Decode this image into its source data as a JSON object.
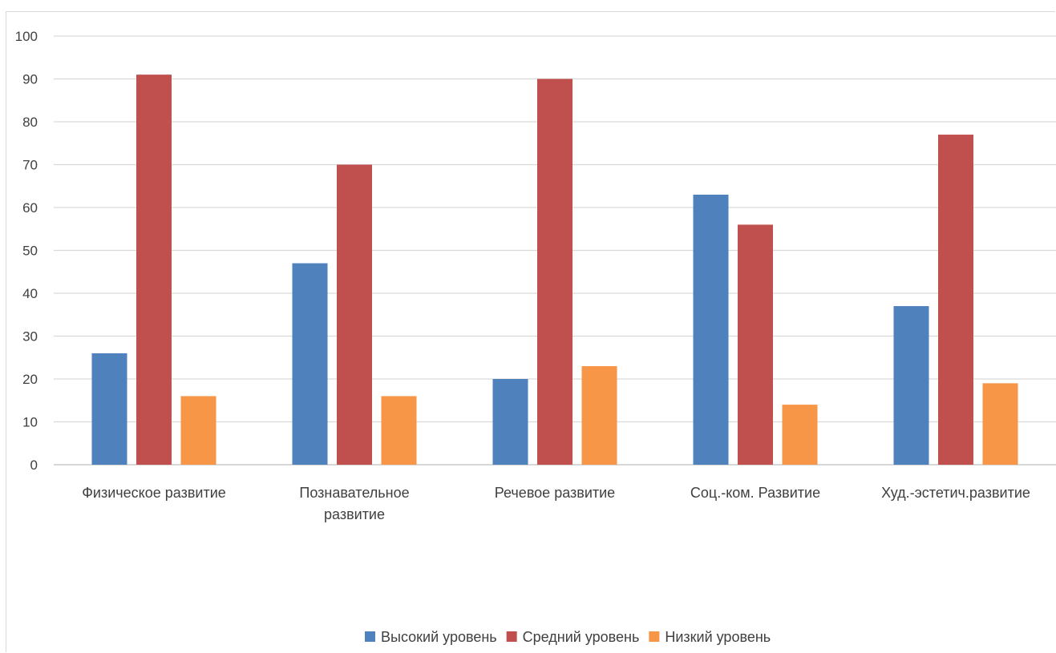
{
  "chart_data": {
    "type": "bar",
    "categories": [
      [
        "Физическое развитие"
      ],
      [
        "Познавательное",
        "развитие"
      ],
      [
        "Речевое развитие"
      ],
      [
        "Соц.-ком. Развитие"
      ],
      [
        "Худ.-эстетич.развитие"
      ]
    ],
    "series": [
      {
        "name": "Высокий уровень",
        "color": "#4f81bd",
        "values": [
          26,
          47,
          20,
          63,
          37
        ]
      },
      {
        "name": "Средний уровень",
        "color": "#c0504d",
        "values": [
          91,
          70,
          90,
          56,
          77
        ]
      },
      {
        "name": "Низкий уровень",
        "color": "#f79646",
        "values": [
          16,
          16,
          23,
          14,
          19
        ]
      }
    ],
    "ylim": [
      0,
      100
    ],
    "yticks": [
      0,
      10,
      20,
      30,
      40,
      50,
      60,
      70,
      80,
      90,
      100
    ],
    "grid": true,
    "legend_position": "bottom",
    "title": "",
    "xlabel": "",
    "ylabel": ""
  }
}
